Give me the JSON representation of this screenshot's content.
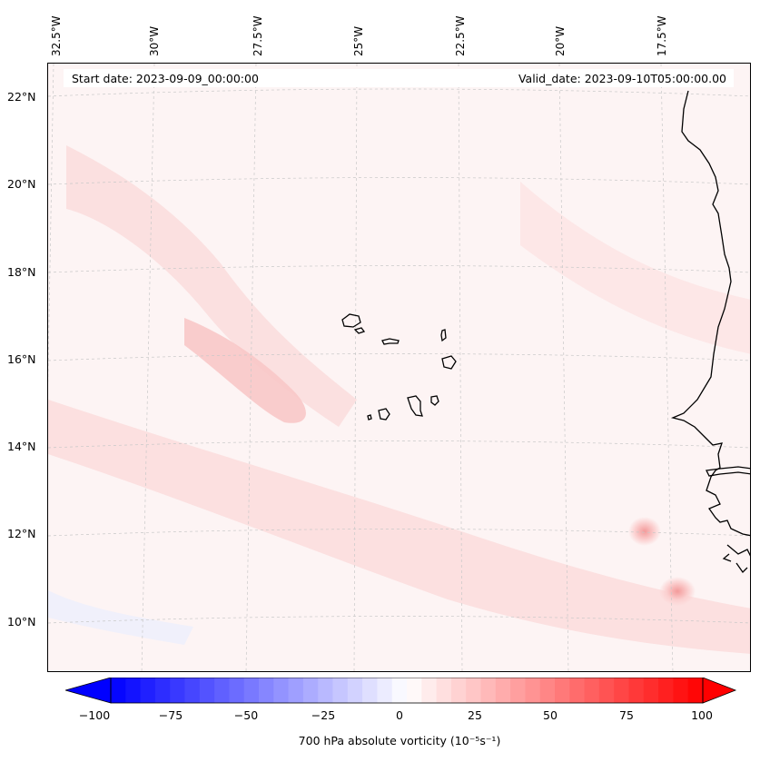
{
  "map": {
    "longitude_labels": [
      "32.5°W",
      "30°W",
      "27.5°W",
      "25°W",
      "22.5°W",
      "20°W",
      "17.5°W"
    ],
    "latitude_labels": [
      "22°N",
      "20°N",
      "18°N",
      "16°N",
      "14°N",
      "12°N",
      "10°N"
    ],
    "start_date": "Start date: 2023-09-09_00:00:00",
    "valid_date": "Valid_date: 2023-09-10T05:00:00.00"
  },
  "colorbar": {
    "label": "700 hPa absolute vorticity (10⁻⁵s⁻¹)",
    "ticks": [
      "−100",
      "−75",
      "−50",
      "−25",
      "0",
      "25",
      "50",
      "75",
      "100"
    ],
    "min": -100,
    "max": 100,
    "low_color": "#0000ff",
    "mid_color": "#ffffff",
    "high_color": "#ff0000"
  },
  "colors": {
    "land_outline": "#000000",
    "gridline": "#c8c8c8",
    "background_field": "#fdf4f4"
  }
}
